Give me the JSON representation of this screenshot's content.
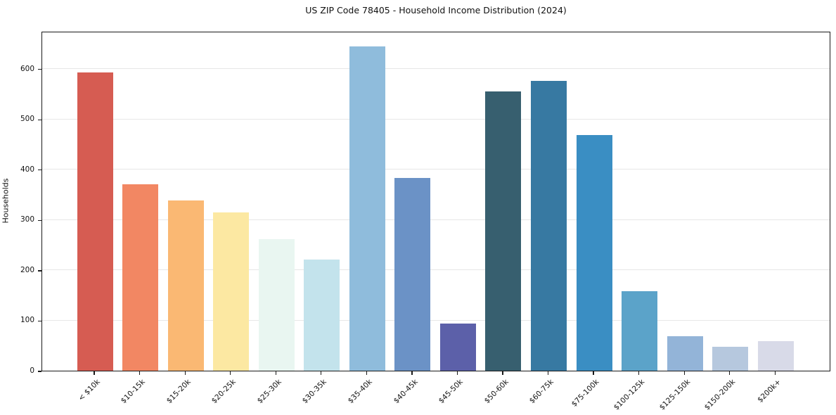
{
  "chart_data": {
    "type": "bar",
    "title": "US ZIP Code 78405 - Household Income Distribution (2024)",
    "xlabel": "",
    "ylabel": "Households",
    "categories": [
      "< $10k",
      "$10-15k",
      "$15-20k",
      "$20-25k",
      "$25-30k",
      "$30-35k",
      "$35-40k",
      "$40-45k",
      "$45-50k",
      "$50-60k",
      "$60-75k",
      "$75-100k",
      "$100-125k",
      "$125-150k",
      "$150-200k",
      "$200k+"
    ],
    "values": [
      592,
      371,
      338,
      314,
      261,
      221,
      644,
      383,
      93,
      555,
      576,
      468,
      158,
      68,
      47,
      59
    ],
    "bar_colors": [
      "#d65c52",
      "#f28763",
      "#fab873",
      "#fce8a2",
      "#e9f6f1",
      "#c3e3ec",
      "#8fbcdc",
      "#6b92c6",
      "#5c60a9",
      "#375f6f",
      "#3779a2",
      "#3a8ec3",
      "#5ba3c9",
      "#93b4d8",
      "#b6c8de",
      "#d8dae8"
    ],
    "ylim": [
      0,
      675
    ],
    "yticks": [
      0,
      100,
      200,
      300,
      400,
      500,
      600
    ],
    "grid": "horizontal",
    "legend": "none",
    "x_tick_rotation_deg": 45
  },
  "colors": {
    "background": "#ffffff",
    "grid": "#e7e7e7",
    "spine": "#1a1a1a",
    "text": "#111111"
  }
}
